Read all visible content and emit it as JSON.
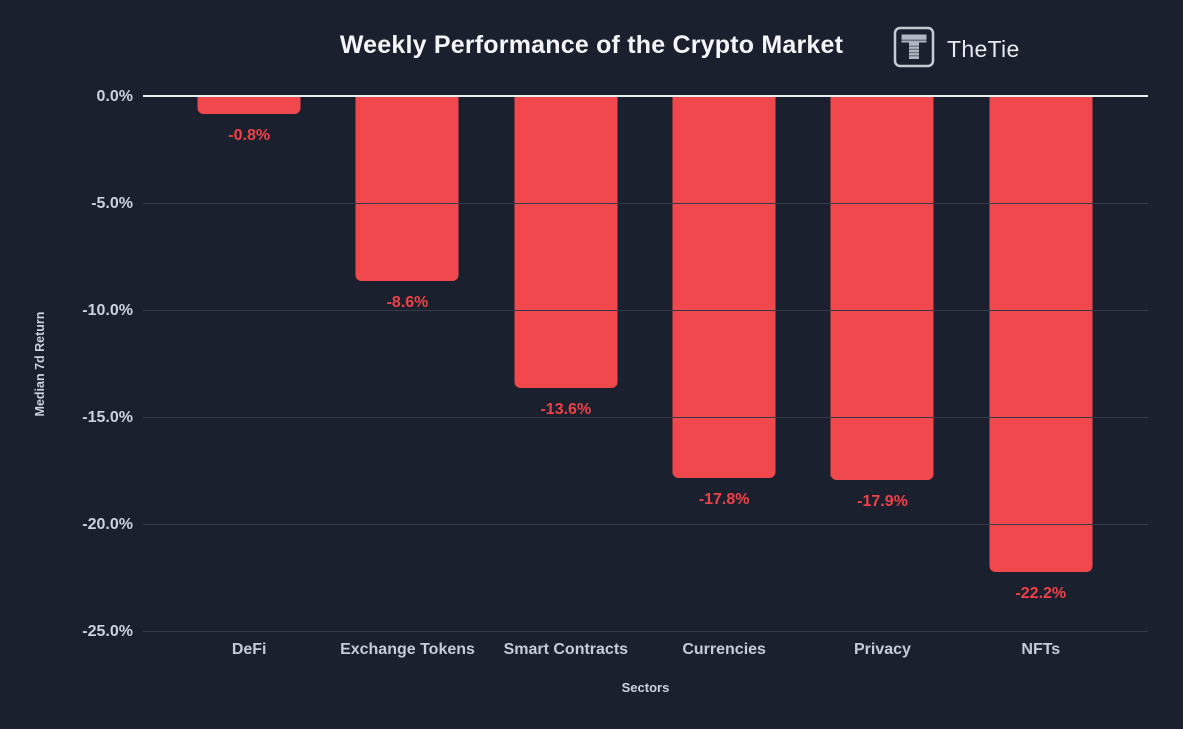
{
  "header": {
    "title": "Weekly Performance of the Crypto Market",
    "brand_name": "TheTie",
    "brand_icon": "thetie-logo"
  },
  "chart_data": {
    "type": "bar",
    "title": "Weekly Performance of the Crypto Market",
    "categories": [
      "DeFi",
      "Exchange Tokens",
      "Smart Contracts",
      "Currencies",
      "Privacy",
      "NFTs"
    ],
    "values": [
      -0.8,
      -8.6,
      -13.6,
      -17.8,
      -17.9,
      -22.2
    ],
    "value_labels": [
      "-0.8%",
      "-8.6%",
      "-13.6%",
      "-17.8%",
      "-17.9%",
      "-22.2%"
    ],
    "xlabel": "Sectors",
    "ylabel": "Median 7d Return",
    "ylim": [
      -25,
      0
    ],
    "yticks": [
      0,
      -5,
      -10,
      -15,
      -20,
      -25
    ],
    "ytick_labels": [
      "0.0%",
      "-5.0%",
      "-10.0%",
      "-15.0%",
      "-20.0%",
      "-25.0%"
    ],
    "grid": true,
    "legend": "none",
    "colors": {
      "bar": "#f0484d",
      "value_label": "#ef4149",
      "background": "#1b202e",
      "gridline": "#333a4a",
      "zero_line": "#e9edf2",
      "tick_text": "#ccd2dc",
      "title_text": "#f4f6f9"
    }
  }
}
